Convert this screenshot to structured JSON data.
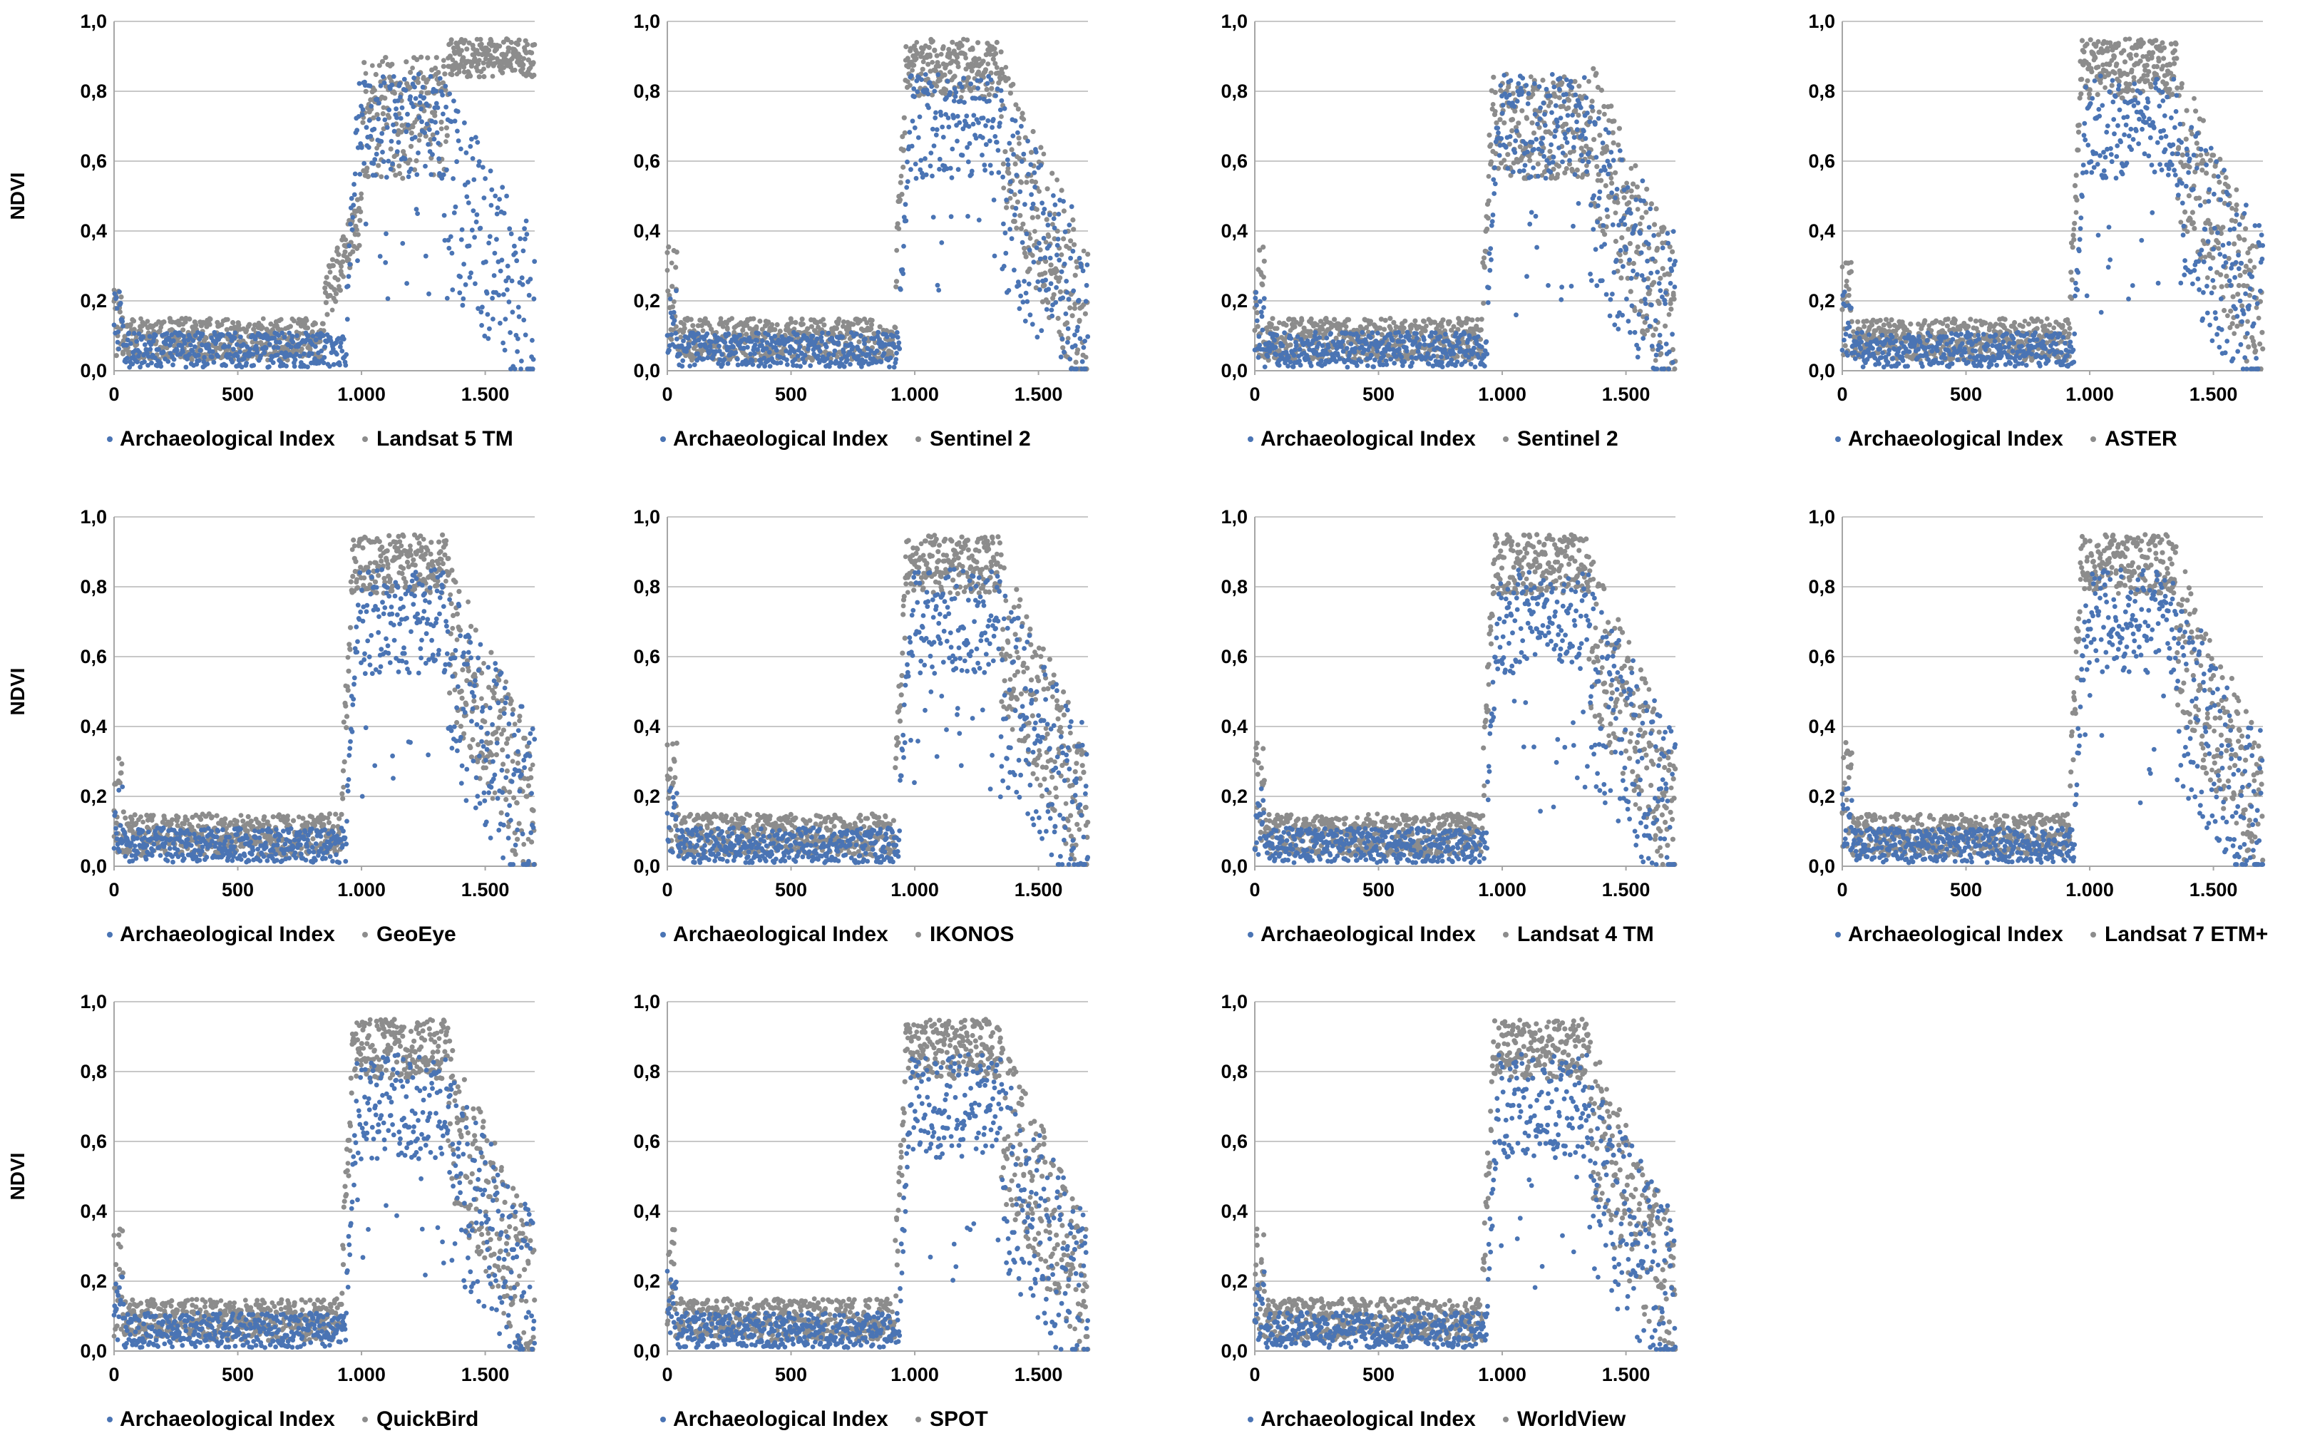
{
  "figure": {
    "x_ticks": [
      "0",
      "500",
      "1.000",
      "1.500"
    ],
    "y_ticks": [
      "0,0",
      "0,2",
      "0,4",
      "0,6",
      "0,8",
      "1,0"
    ],
    "ylabel": "NDVI",
    "colors": {
      "archaeological": "#4a74b4",
      "sensor": "#8c8c8c",
      "grid": "#c8c8c8",
      "axis": "#a6a6a6"
    }
  },
  "chart_data": [
    {
      "type": "scatter",
      "title": "",
      "xlabel": "",
      "ylabel": "NDVI",
      "xlim": [
        0,
        1700
      ],
      "ylim": [
        0,
        1.0
      ],
      "x_ticks": [
        "0",
        "500",
        "1.000",
        "1.500"
      ],
      "y_ticks": [
        "0,0",
        "0,2",
        "0,4",
        "0,6",
        "0,8",
        "1,0"
      ],
      "series": [
        {
          "name": "Archaeological Index",
          "points": "approx. 1700 points: ~0.02-0.15 for x 0-950, rising at x~950 to ~0.5-0.9 for x 1000-1400, scattered 0.05-0.7 to x 1700"
        },
        {
          "name": "Landsat 5 TM",
          "points": "approx. 1700 points: ~0.03-0.15 for x 0-850, ramp 0.15-0.45 at x 850-1000, ~0.6-0.9 for x 1000-1350, ~0.85-0.95 for x 1350-1700"
        }
      ]
    },
    {
      "type": "scatter",
      "ylabel": "",
      "xlim": [
        0,
        1700
      ],
      "ylim": [
        0,
        1.0
      ],
      "series": [
        {
          "name": "Archaeological Index",
          "points": "approx. 1700 points; plateau ~0.7-0.85 for x 1000-1350"
        },
        {
          "name": "Sentinel 2",
          "points": "approx. 1700 points; plateau ~0.85-0.95 for x 1000-1350"
        }
      ]
    },
    {
      "type": "scatter",
      "ylabel": "",
      "xlim": [
        0,
        1700
      ],
      "ylim": [
        0,
        1.0
      ],
      "series": [
        {
          "name": "Archaeological Index",
          "points": "approx. 1700 points"
        },
        {
          "name": "Sentinel 2",
          "points": "approx. 1700 points; plateau ~0.6-0.85"
        }
      ]
    },
    {
      "type": "scatter",
      "ylabel": "",
      "xlim": [
        0,
        1700
      ],
      "ylim": [
        0,
        1.0
      ],
      "series": [
        {
          "name": "Archaeological Index",
          "points": "approx. 1700 points"
        },
        {
          "name": "ASTER",
          "points": "approx. 1700 points"
        }
      ]
    },
    {
      "type": "scatter",
      "ylabel": "NDVI",
      "xlim": [
        0,
        1700
      ],
      "ylim": [
        0,
        1.0
      ],
      "series": [
        {
          "name": "Archaeological Index",
          "points": "approx. 1700 points"
        },
        {
          "name": "GeoEye",
          "points": "approx. 1700 points"
        }
      ]
    },
    {
      "type": "scatter",
      "ylabel": "",
      "xlim": [
        0,
        1700
      ],
      "ylim": [
        0,
        1.0
      ],
      "series": [
        {
          "name": "Archaeological Index",
          "points": "approx. 1700 points"
        },
        {
          "name": "IKONOS",
          "points": "approx. 1700 points"
        }
      ]
    },
    {
      "type": "scatter",
      "ylabel": "",
      "xlim": [
        0,
        1700
      ],
      "ylim": [
        0,
        1.0
      ],
      "series": [
        {
          "name": "Archaeological Index",
          "points": "approx. 1700 points"
        },
        {
          "name": "Landsat 4  TM",
          "points": "approx. 1700 points"
        }
      ]
    },
    {
      "type": "scatter",
      "ylabel": "",
      "xlim": [
        0,
        1700
      ],
      "ylim": [
        0,
        1.0
      ],
      "series": [
        {
          "name": "Archaeological Index",
          "points": "approx. 1700 points"
        },
        {
          "name": "Landsat 7 ETM+",
          "points": "approx. 1700 points"
        }
      ]
    },
    {
      "type": "scatter",
      "ylabel": "NDVI",
      "xlim": [
        0,
        1700
      ],
      "ylim": [
        0,
        1.0
      ],
      "series": [
        {
          "name": "Archaeological Index",
          "points": "approx. 1700 points"
        },
        {
          "name": "QuickBird",
          "points": "approx. 1700 points"
        }
      ]
    },
    {
      "type": "scatter",
      "ylabel": "",
      "xlim": [
        0,
        1700
      ],
      "ylim": [
        0,
        1.0
      ],
      "series": [
        {
          "name": "Archaeological Index",
          "points": "approx. 1700 points"
        },
        {
          "name": "SPOT",
          "points": "approx. 1700 points"
        }
      ]
    },
    {
      "type": "scatter",
      "ylabel": "",
      "xlim": [
        0,
        1700
      ],
      "ylim": [
        0,
        1.0
      ],
      "series": [
        {
          "name": "Archaeological Index",
          "points": "approx. 1700 points"
        },
        {
          "name": "WorldView",
          "points": "approx. 1700 points"
        }
      ]
    }
  ]
}
